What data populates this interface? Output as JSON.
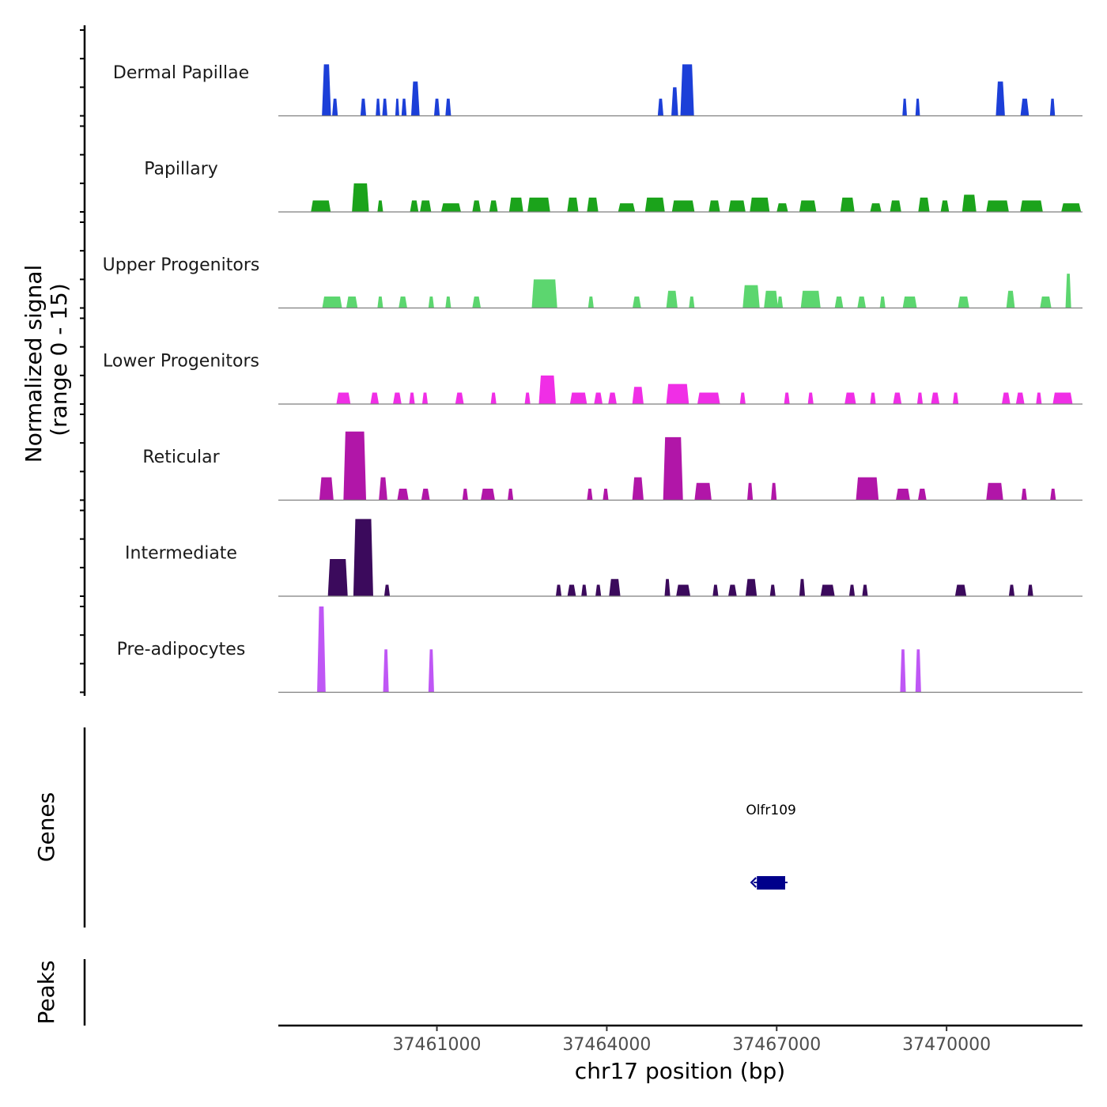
{
  "chart_data": {
    "type": "area",
    "title": "",
    "ylabel": "Normalized signal",
    "ylabel_sub": "(range 0 - 15)",
    "xlabel": "chr17 position (bp)",
    "xlim": [
      37458200,
      37472400
    ],
    "x_ticks": [
      37461000,
      37464000,
      37467000,
      37470000
    ],
    "x_tick_labels": [
      "37461000",
      "37464000",
      "37467000",
      "37470000"
    ],
    "ylim": [
      0,
      15
    ],
    "genes_label": "Genes",
    "peaks_label": "Peaks",
    "colors": {
      "axis": "#000000",
      "baseline": "#7f7f7f",
      "gene": "#00008b",
      "tick_text": "#4d4d4d"
    },
    "tracks": [
      {
        "name": "Dermal Papillae",
        "color": "#1c3fd8",
        "peaks": [
          [
            37459050,
            160,
            9.0
          ],
          [
            37459200,
            100,
            3.0
          ],
          [
            37459700,
            100,
            3.0
          ],
          [
            37459960,
            80,
            3.0
          ],
          [
            37460080,
            90,
            3.0
          ],
          [
            37460300,
            70,
            3.0
          ],
          [
            37460420,
            90,
            3.0
          ],
          [
            37460620,
            150,
            6.0
          ],
          [
            37461000,
            100,
            3.0
          ],
          [
            37461200,
            100,
            3.0
          ],
          [
            37464950,
            100,
            3.0
          ],
          [
            37465200,
            120,
            5.0
          ],
          [
            37465420,
            240,
            9.0
          ],
          [
            37469260,
            80,
            3.0
          ],
          [
            37469490,
            80,
            3.0
          ],
          [
            37470950,
            160,
            6.0
          ],
          [
            37471380,
            150,
            3.0
          ],
          [
            37471870,
            90,
            3.0
          ]
        ]
      },
      {
        "name": "Papillary",
        "color": "#1ba31b",
        "peaks": [
          [
            37458950,
            350,
            2.0
          ],
          [
            37459650,
            300,
            5.0
          ],
          [
            37460000,
            100,
            2.0
          ],
          [
            37460600,
            150,
            2.0
          ],
          [
            37460800,
            200,
            2.0
          ],
          [
            37461250,
            350,
            1.5
          ],
          [
            37461700,
            150,
            2.0
          ],
          [
            37462000,
            150,
            2.0
          ],
          [
            37462400,
            250,
            2.5
          ],
          [
            37462800,
            400,
            2.5
          ],
          [
            37463400,
            200,
            2.5
          ],
          [
            37463750,
            200,
            2.5
          ],
          [
            37464350,
            300,
            1.5
          ],
          [
            37464850,
            350,
            2.5
          ],
          [
            37465350,
            400,
            2.0
          ],
          [
            37465900,
            200,
            2.0
          ],
          [
            37466300,
            300,
            2.0
          ],
          [
            37466700,
            350,
            2.5
          ],
          [
            37467100,
            200,
            1.5
          ],
          [
            37467550,
            300,
            2.0
          ],
          [
            37468250,
            250,
            2.5
          ],
          [
            37468750,
            200,
            1.5
          ],
          [
            37469100,
            200,
            2.0
          ],
          [
            37469600,
            200,
            2.5
          ],
          [
            37469970,
            150,
            2.0
          ],
          [
            37470400,
            250,
            3.0
          ],
          [
            37470900,
            400,
            2.0
          ],
          [
            37471500,
            400,
            2.0
          ],
          [
            37472200,
            350,
            1.5
          ]
        ]
      },
      {
        "name": "Upper Progenitors",
        "color": "#5cd66f",
        "peaks": [
          [
            37459150,
            350,
            2.0
          ],
          [
            37459500,
            200,
            2.0
          ],
          [
            37460000,
            100,
            2.0
          ],
          [
            37460400,
            150,
            2.0
          ],
          [
            37460900,
            100,
            2.0
          ],
          [
            37461200,
            100,
            2.0
          ],
          [
            37461700,
            150,
            2.0
          ],
          [
            37462900,
            450,
            5.0
          ],
          [
            37463720,
            100,
            2.0
          ],
          [
            37464530,
            150,
            2.0
          ],
          [
            37465150,
            200,
            3.0
          ],
          [
            37465500,
            100,
            2.0
          ],
          [
            37466550,
            300,
            4.0
          ],
          [
            37466900,
            250,
            3.0
          ],
          [
            37467060,
            100,
            2.0
          ],
          [
            37467600,
            350,
            3.0
          ],
          [
            37468100,
            150,
            2.0
          ],
          [
            37468500,
            150,
            2.0
          ],
          [
            37468870,
            100,
            2.0
          ],
          [
            37469350,
            250,
            2.0
          ],
          [
            37470300,
            200,
            2.0
          ],
          [
            37471130,
            150,
            3.0
          ],
          [
            37471750,
            200,
            2.0
          ],
          [
            37472150,
            100,
            6.0
          ]
        ]
      },
      {
        "name": "Lower Progenitors",
        "color": "#f02ee6",
        "peaks": [
          [
            37459350,
            250,
            2.0
          ],
          [
            37459900,
            150,
            2.0
          ],
          [
            37460300,
            150,
            2.0
          ],
          [
            37460560,
            100,
            2.0
          ],
          [
            37460790,
            100,
            2.0
          ],
          [
            37461400,
            150,
            2.0
          ],
          [
            37462000,
            100,
            2.0
          ],
          [
            37462600,
            100,
            2.0
          ],
          [
            37462950,
            300,
            5.0
          ],
          [
            37463500,
            300,
            2.0
          ],
          [
            37463850,
            150,
            2.0
          ],
          [
            37464100,
            150,
            2.0
          ],
          [
            37464550,
            200,
            3.0
          ],
          [
            37465250,
            400,
            3.5
          ],
          [
            37465800,
            400,
            2.0
          ],
          [
            37466400,
            100,
            2.0
          ],
          [
            37467180,
            100,
            2.0
          ],
          [
            37467600,
            100,
            2.0
          ],
          [
            37468300,
            200,
            2.0
          ],
          [
            37468700,
            100,
            2.0
          ],
          [
            37469130,
            150,
            2.0
          ],
          [
            37469530,
            100,
            2.0
          ],
          [
            37469800,
            150,
            2.0
          ],
          [
            37470160,
            100,
            2.0
          ],
          [
            37471050,
            150,
            2.0
          ],
          [
            37471300,
            150,
            2.0
          ],
          [
            37471630,
            100,
            2.0
          ],
          [
            37472050,
            350,
            2.0
          ]
        ]
      },
      {
        "name": "Reticular",
        "color": "#b116a8",
        "peaks": [
          [
            37459050,
            250,
            4.0
          ],
          [
            37459550,
            400,
            12.0
          ],
          [
            37460050,
            150,
            4.0
          ],
          [
            37460400,
            200,
            2.0
          ],
          [
            37460800,
            150,
            2.0
          ],
          [
            37461500,
            100,
            2.0
          ],
          [
            37461900,
            250,
            2.0
          ],
          [
            37462300,
            100,
            2.0
          ],
          [
            37463700,
            100,
            2.0
          ],
          [
            37463980,
            100,
            2.0
          ],
          [
            37464550,
            200,
            4.0
          ],
          [
            37465170,
            350,
            11.0
          ],
          [
            37465700,
            300,
            3.0
          ],
          [
            37466530,
            100,
            3.0
          ],
          [
            37466950,
            100,
            3.0
          ],
          [
            37468600,
            400,
            4.0
          ],
          [
            37469230,
            250,
            2.0
          ],
          [
            37469570,
            150,
            2.0
          ],
          [
            37470850,
            300,
            3.0
          ],
          [
            37471370,
            100,
            2.0
          ],
          [
            37471880,
            100,
            2.0
          ]
        ]
      },
      {
        "name": "Intermediate",
        "color": "#3b0a5c",
        "peaks": [
          [
            37459250,
            350,
            6.5
          ],
          [
            37459700,
            350,
            13.5
          ],
          [
            37460120,
            100,
            2.0
          ],
          [
            37463150,
            100,
            2.0
          ],
          [
            37463380,
            150,
            2.0
          ],
          [
            37463600,
            100,
            2.0
          ],
          [
            37463850,
            100,
            2.0
          ],
          [
            37464140,
            200,
            3.0
          ],
          [
            37465070,
            100,
            3.0
          ],
          [
            37465350,
            250,
            2.0
          ],
          [
            37465920,
            100,
            2.0
          ],
          [
            37466220,
            150,
            2.0
          ],
          [
            37466550,
            200,
            3.0
          ],
          [
            37466930,
            100,
            2.0
          ],
          [
            37467450,
            100,
            3.0
          ],
          [
            37467900,
            250,
            2.0
          ],
          [
            37468330,
            100,
            2.0
          ],
          [
            37468560,
            100,
            2.0
          ],
          [
            37470250,
            200,
            2.0
          ],
          [
            37471150,
            100,
            2.0
          ],
          [
            37471480,
            100,
            2.0
          ]
        ]
      },
      {
        "name": "Pre-adipocytes",
        "color": "#bf57f5",
        "peaks": [
          [
            37458960,
            150,
            15.0
          ],
          [
            37460100,
            100,
            7.5
          ],
          [
            37460900,
            100,
            7.5
          ],
          [
            37469230,
            100,
            7.5
          ],
          [
            37469500,
            100,
            7.5
          ]
        ]
      }
    ],
    "genes": [
      {
        "name": "Olfr109",
        "start": 37466650,
        "end": 37467150,
        "strand": "-"
      }
    ],
    "peak_regions": []
  }
}
